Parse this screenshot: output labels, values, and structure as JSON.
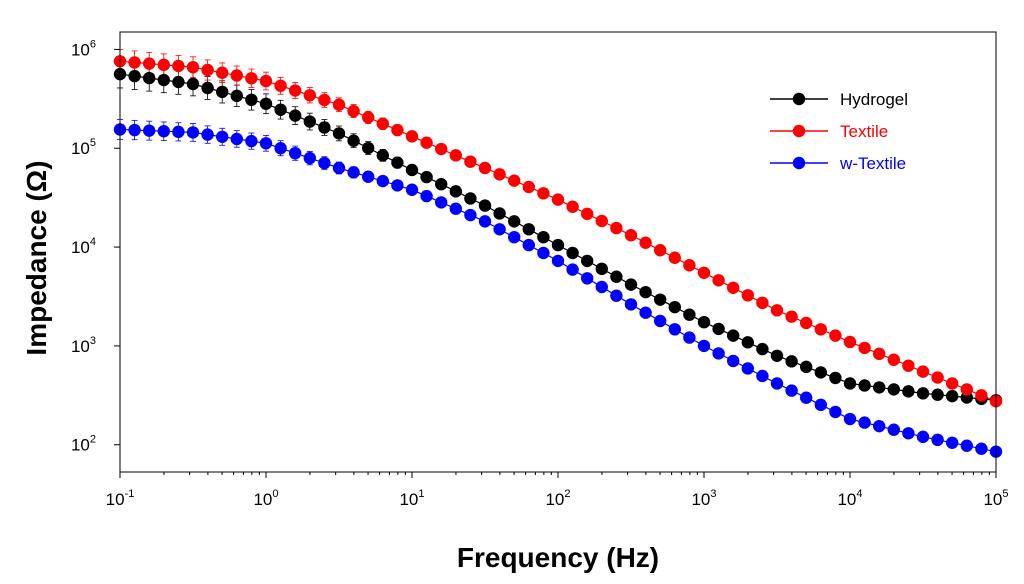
{
  "chart_data": {
    "type": "scatter",
    "title": "",
    "xlabel": "Frequency (Hz)",
    "ylabel": "Impedance (Ω)",
    "xscale": "log",
    "yscale": "log",
    "xlim": [
      0.1,
      100000
    ],
    "ylim": [
      53,
      1500000
    ],
    "x_ticks": [
      {
        "base": "10",
        "exp": "-1",
        "value": 0.1
      },
      {
        "base": "10",
        "exp": "0",
        "value": 1
      },
      {
        "base": "10",
        "exp": "1",
        "value": 10
      },
      {
        "base": "10",
        "exp": "2",
        "value": 100
      },
      {
        "base": "10",
        "exp": "3",
        "value": 1000
      },
      {
        "base": "10",
        "exp": "4",
        "value": 10000
      },
      {
        "base": "10",
        "exp": "5",
        "value": 100000
      }
    ],
    "y_ticks": [
      {
        "base": "10",
        "exp": "2",
        "value": 100
      },
      {
        "base": "10",
        "exp": "3",
        "value": 1000
      },
      {
        "base": "10",
        "exp": "4",
        "value": 10000
      },
      {
        "base": "10",
        "exp": "5",
        "value": 100000
      },
      {
        "base": "10",
        "exp": "6",
        "value": 1000000
      }
    ],
    "legend_position": "top-right",
    "points_per_decade": 10,
    "series": [
      {
        "name": "Hydrogel",
        "color": "#000000",
        "error_color": "#000000",
        "log_anchors": [
          [
            -1,
            5.75
          ],
          [
            -0.5,
            5.65
          ],
          [
            0,
            5.45
          ],
          [
            0.5,
            5.15
          ],
          [
            1,
            4.78
          ],
          [
            1.5,
            4.42
          ],
          [
            2,
            4.02
          ],
          [
            2.5,
            3.62
          ],
          [
            3,
            3.24
          ],
          [
            3.5,
            2.9
          ],
          [
            4,
            2.62
          ],
          [
            4.5,
            2.52
          ],
          [
            5,
            2.45
          ]
        ],
        "log_error": [
          [
            -1,
            0.14
          ],
          [
            0,
            0.1
          ],
          [
            1,
            0.05
          ],
          [
            2,
            0.03
          ],
          [
            5,
            0.03
          ]
        ]
      },
      {
        "name": "Textile",
        "color": "#ff0000",
        "error_color": "#ff0000",
        "log_anchors": [
          [
            -1,
            5.88
          ],
          [
            -0.5,
            5.82
          ],
          [
            0,
            5.68
          ],
          [
            0.5,
            5.44
          ],
          [
            1,
            5.12
          ],
          [
            1.5,
            4.8
          ],
          [
            2,
            4.48
          ],
          [
            2.5,
            4.12
          ],
          [
            3,
            3.74
          ],
          [
            3.5,
            3.36
          ],
          [
            4,
            3.04
          ],
          [
            4.5,
            2.74
          ],
          [
            5,
            2.44
          ]
        ],
        "log_error": [
          [
            -1,
            0.12
          ],
          [
            0,
            0.09
          ],
          [
            1,
            0.05
          ],
          [
            2,
            0.04
          ],
          [
            5,
            0.05
          ]
        ]
      },
      {
        "name": "w-Textile",
        "color": "#0000ff",
        "error_color": "#0000ff",
        "log_anchors": [
          [
            -1,
            5.19
          ],
          [
            -0.5,
            5.16
          ],
          [
            0,
            5.05
          ],
          [
            0.5,
            4.8
          ],
          [
            1,
            4.58
          ],
          [
            1.5,
            4.26
          ],
          [
            2,
            3.86
          ],
          [
            2.5,
            3.42
          ],
          [
            3,
            3.0
          ],
          [
            3.5,
            2.62
          ],
          [
            4,
            2.26
          ],
          [
            4.5,
            2.08
          ],
          [
            5,
            1.93
          ]
        ],
        "log_error": [
          [
            -1,
            0.1
          ],
          [
            0,
            0.08
          ],
          [
            1,
            0.04
          ],
          [
            2,
            0.03
          ],
          [
            5,
            0.02
          ]
        ]
      }
    ]
  }
}
